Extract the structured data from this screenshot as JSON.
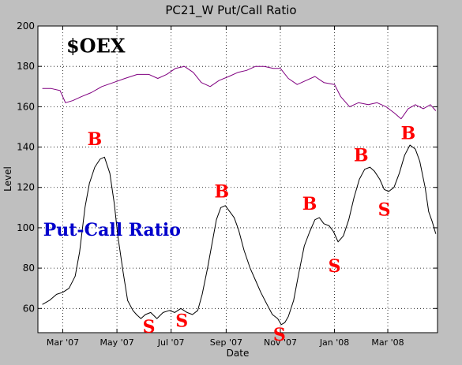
{
  "chart_data": {
    "type": "line",
    "title": "PC21_W Put/Call Ratio",
    "xlabel": "Date",
    "ylabel": "Level",
    "ylim": [
      48,
      200
    ],
    "yticks": [
      60,
      80,
      100,
      120,
      140,
      160,
      180,
      200
    ],
    "grid": true,
    "background": "#bfbfbf",
    "plot_background": "#ffffff",
    "x_tick_labels": [
      "Mar '07",
      "May '07",
      "Jul '07",
      "Sep '07",
      "Nov '07",
      "Jan '08",
      "Mar '08"
    ],
    "x_tick_dates": [
      "2007-03-01",
      "2007-05-01",
      "2007-07-01",
      "2007-09-01",
      "2007-11-01",
      "2008-01-01",
      "2008-03-01"
    ],
    "xlim": [
      "2007-02-01",
      "2008-04-26"
    ],
    "series": [
      {
        "name": "Put-Call Ratio",
        "color": "#000000",
        "points": [
          [
            "2007-02-06",
            62
          ],
          [
            "2007-02-14",
            64
          ],
          [
            "2007-02-22",
            67
          ],
          [
            "2007-03-01",
            68
          ],
          [
            "2007-03-08",
            70
          ],
          [
            "2007-03-15",
            76
          ],
          [
            "2007-03-20",
            88
          ],
          [
            "2007-03-26",
            110
          ],
          [
            "2007-03-31",
            122
          ],
          [
            "2007-04-06",
            130
          ],
          [
            "2007-04-12",
            134
          ],
          [
            "2007-04-17",
            135
          ],
          [
            "2007-04-23",
            127
          ],
          [
            "2007-04-28",
            112
          ],
          [
            "2007-05-02",
            96
          ],
          [
            "2007-05-08",
            78
          ],
          [
            "2007-05-13",
            64
          ],
          [
            "2007-05-19",
            59
          ],
          [
            "2007-05-23",
            57
          ],
          [
            "2007-05-28",
            55
          ],
          [
            "2007-06-02",
            57
          ],
          [
            "2007-06-08",
            58
          ],
          [
            "2007-06-15",
            55
          ],
          [
            "2007-06-22",
            58
          ],
          [
            "2007-06-29",
            59
          ],
          [
            "2007-07-05",
            58
          ],
          [
            "2007-07-12",
            60
          ],
          [
            "2007-07-19",
            58
          ],
          [
            "2007-07-25",
            57
          ],
          [
            "2007-07-31",
            59
          ],
          [
            "2007-08-05",
            67
          ],
          [
            "2007-08-11",
            80
          ],
          [
            "2007-08-16",
            92
          ],
          [
            "2007-08-21",
            104
          ],
          [
            "2007-08-26",
            110
          ],
          [
            "2007-08-31",
            111
          ],
          [
            "2007-09-05",
            108
          ],
          [
            "2007-09-10",
            105
          ],
          [
            "2007-09-15",
            99
          ],
          [
            "2007-09-21",
            89
          ],
          [
            "2007-09-28",
            80
          ],
          [
            "2007-10-04",
            74
          ],
          [
            "2007-10-10",
            68
          ],
          [
            "2007-10-17",
            62
          ],
          [
            "2007-10-23",
            57
          ],
          [
            "2007-10-29",
            55
          ],
          [
            "2007-11-02",
            52
          ],
          [
            "2007-11-06",
            53
          ],
          [
            "2007-11-10",
            56
          ],
          [
            "2007-11-16",
            64
          ],
          [
            "2007-11-22",
            78
          ],
          [
            "2007-11-28",
            91
          ],
          [
            "2007-12-04",
            98
          ],
          [
            "2007-12-10",
            104
          ],
          [
            "2007-12-15",
            105
          ],
          [
            "2007-12-20",
            102
          ],
          [
            "2007-12-26",
            101
          ],
          [
            "2007-12-31",
            98
          ],
          [
            "2008-01-05",
            93
          ],
          [
            "2008-01-11",
            96
          ],
          [
            "2008-01-17",
            104
          ],
          [
            "2008-01-23",
            115
          ],
          [
            "2008-01-29",
            124
          ],
          [
            "2008-02-04",
            129
          ],
          [
            "2008-02-10",
            130
          ],
          [
            "2008-02-15",
            128
          ],
          [
            "2008-02-21",
            124
          ],
          [
            "2008-02-26",
            119
          ],
          [
            "2008-03-02",
            118
          ],
          [
            "2008-03-08",
            120
          ],
          [
            "2008-03-14",
            127
          ],
          [
            "2008-03-20",
            136
          ],
          [
            "2008-03-26",
            141
          ],
          [
            "2008-04-01",
            139
          ],
          [
            "2008-04-06",
            133
          ],
          [
            "2008-04-12",
            120
          ],
          [
            "2008-04-16",
            108
          ],
          [
            "2008-04-20",
            103
          ],
          [
            "2008-04-24",
            97
          ]
        ]
      },
      {
        "name": "$OEX",
        "color": "#800080",
        "points": [
          [
            "2007-02-06",
            169
          ],
          [
            "2007-02-16",
            169
          ],
          [
            "2007-02-26",
            168
          ],
          [
            "2007-03-04",
            162
          ],
          [
            "2007-03-12",
            163
          ],
          [
            "2007-03-22",
            165
          ],
          [
            "2007-04-02",
            167
          ],
          [
            "2007-04-14",
            170
          ],
          [
            "2007-04-27",
            172
          ],
          [
            "2007-05-10",
            174
          ],
          [
            "2007-05-24",
            176
          ],
          [
            "2007-06-06",
            176
          ],
          [
            "2007-06-16",
            174
          ],
          [
            "2007-06-26",
            176
          ],
          [
            "2007-07-06",
            179
          ],
          [
            "2007-07-16",
            180
          ],
          [
            "2007-07-26",
            177
          ],
          [
            "2007-08-04",
            172
          ],
          [
            "2007-08-14",
            170
          ],
          [
            "2007-08-24",
            173
          ],
          [
            "2007-09-04",
            175
          ],
          [
            "2007-09-14",
            177
          ],
          [
            "2007-09-24",
            178
          ],
          [
            "2007-10-04",
            180
          ],
          [
            "2007-10-14",
            180
          ],
          [
            "2007-10-24",
            179
          ],
          [
            "2007-11-01",
            179
          ],
          [
            "2007-11-10",
            174
          ],
          [
            "2007-11-20",
            171
          ],
          [
            "2007-11-30",
            173
          ],
          [
            "2007-12-10",
            175
          ],
          [
            "2007-12-20",
            172
          ],
          [
            "2008-01-01",
            171
          ],
          [
            "2008-01-08",
            165
          ],
          [
            "2008-01-18",
            160
          ],
          [
            "2008-01-28",
            162
          ],
          [
            "2008-02-08",
            161
          ],
          [
            "2008-02-18",
            162
          ],
          [
            "2008-02-28",
            160
          ],
          [
            "2008-03-08",
            157
          ],
          [
            "2008-03-16",
            154
          ],
          [
            "2008-03-24",
            159
          ],
          [
            "2008-04-01",
            161
          ],
          [
            "2008-04-10",
            159
          ],
          [
            "2008-04-18",
            161
          ],
          [
            "2008-04-24",
            158
          ]
        ]
      }
    ],
    "annotations": [
      {
        "text": "$OEX",
        "color": "#000000",
        "at": [
          "2007-03-05",
          187
        ],
        "size": 24,
        "weight": "bold"
      },
      {
        "text": "Put-Call Ratio",
        "color": "#0000cc",
        "at": [
          "2007-02-07",
          96
        ],
        "size": 22,
        "weight": "bold"
      },
      {
        "text": "B",
        "color": "#ff0000",
        "at": [
          "2007-04-06",
          141
        ]
      },
      {
        "text": "S",
        "color": "#ff0000",
        "at": [
          "2007-06-06",
          48
        ]
      },
      {
        "text": "S",
        "color": "#ff0000",
        "at": [
          "2007-07-13",
          51
        ]
      },
      {
        "text": "B",
        "color": "#ff0000",
        "at": [
          "2007-08-27",
          115
        ]
      },
      {
        "text": "S",
        "color": "#ff0000",
        "at": [
          "2007-10-31",
          44
        ]
      },
      {
        "text": "B",
        "color": "#ff0000",
        "at": [
          "2007-12-04",
          109
        ]
      },
      {
        "text": "S",
        "color": "#ff0000",
        "at": [
          "2008-01-01",
          78
        ]
      },
      {
        "text": "B",
        "color": "#ff0000",
        "at": [
          "2008-01-31",
          133
        ]
      },
      {
        "text": "S",
        "color": "#ff0000",
        "at": [
          "2008-02-26",
          106
        ]
      },
      {
        "text": "B",
        "color": "#ff0000",
        "at": [
          "2008-03-24",
          144
        ]
      }
    ]
  }
}
